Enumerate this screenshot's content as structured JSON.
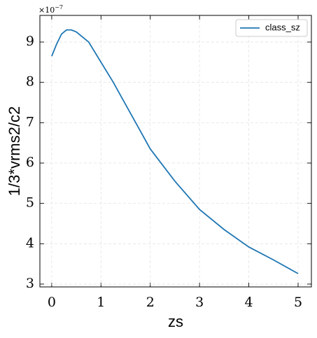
{
  "chart_data": {
    "type": "line",
    "xlabel": "zs",
    "ylabel": "1/3*vrms2/c2",
    "offset_label": {
      "base": "×10",
      "exponent": "−7"
    },
    "series": [
      {
        "name": "class_sz",
        "color": "#1f77b4",
        "x": [
          0,
          0.1,
          0.2,
          0.3,
          0.4,
          0.5,
          0.75,
          1.0,
          1.25,
          1.5,
          1.75,
          2.0,
          2.5,
          3.0,
          3.5,
          4.0,
          4.5,
          5.0
        ],
        "values": [
          8.65,
          8.95,
          9.2,
          9.3,
          9.3,
          9.25,
          9.0,
          8.5,
          8.0,
          7.45,
          6.9,
          6.35,
          5.55,
          4.85,
          4.35,
          3.92,
          3.6,
          3.26
        ]
      }
    ],
    "xlim": [
      -0.24,
      5.27
    ],
    "ylim": [
      2.93,
      9.66
    ],
    "xticks": [
      0,
      1,
      2,
      3,
      4,
      5
    ],
    "yticks": [
      3,
      4,
      5,
      6,
      7,
      8,
      9
    ],
    "grid": true,
    "legend": "upper right"
  }
}
